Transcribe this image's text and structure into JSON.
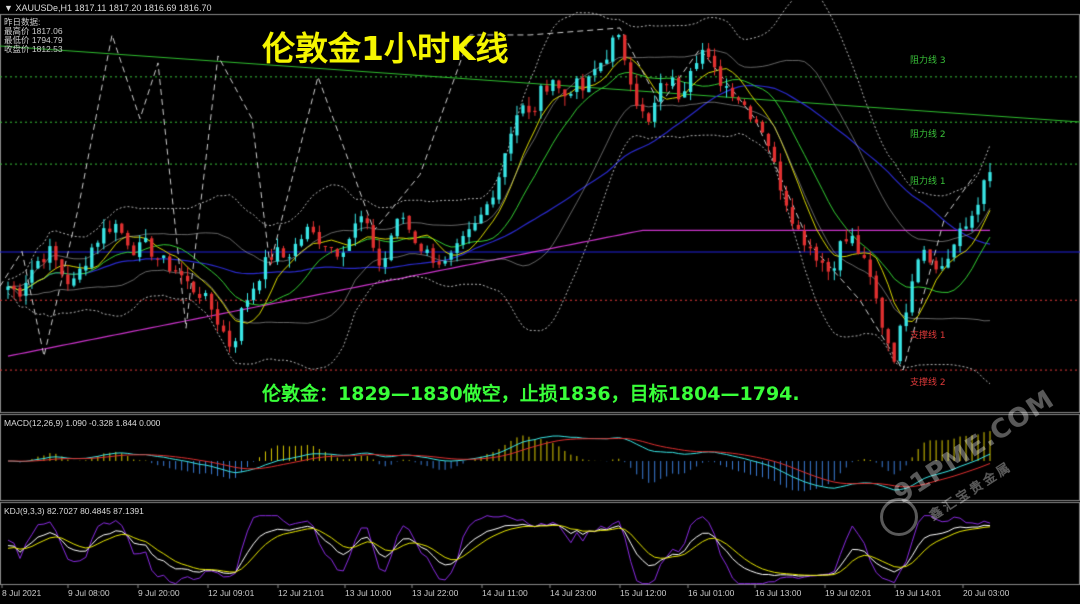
{
  "header": {
    "symbol": "XAUUSDe,H1",
    "ohlc": "1817.11 1817.20 1816.69 1816.70"
  },
  "info": {
    "heading": "昨日数据:",
    "open": "最高价 1817.06",
    "low": "最低价 1794.79",
    "close": "收盘价 1812.53"
  },
  "title": "伦敦金1小时K线",
  "trade_note": "伦敦金：1829—1830做空，止损1836，目标1804—1794.",
  "levels": [
    {
      "label": "阻力线 3",
      "price": 1836,
      "color": "#39c139"
    },
    {
      "label": "阻力线 2",
      "price": 1829.5,
      "color": "#39c139"
    },
    {
      "label": "阻力线 1",
      "price": 1823.5,
      "color": "#39c139"
    },
    {
      "label": "支撑线 1",
      "price": 1804,
      "color": "#e03a3a"
    },
    {
      "label": "支撑线 2",
      "price": 1794,
      "color": "#e03a3a"
    }
  ],
  "macd_label": "MACD(12,26,9) 1.090 -0.328 1.844 0.000",
  "kdj_label": "KDJ(9,3,3) 82.7027 80.4845 87.1391",
  "watermark": {
    "brand": "91PME.COM",
    "sub": "鑫汇宝贵金属"
  },
  "colors": {
    "bull": "#39e6e6",
    "bear": "#e03030",
    "ma_blue": "#2a2acc",
    "ma_magenta": "#cc33cc",
    "ma_green": "#33cc33",
    "ma_yellow": "#d8d800",
    "bollinger": "#dddddd"
  },
  "chart_data": {
    "type": "candlestick",
    "symbol": "XAUUSDe",
    "timeframe": "H1",
    "x_ticks": [
      "8 Jul 2021",
      "9 Jul 08:00",
      "9 Jul 20:00",
      "12 Jul 09:01",
      "12 Jul 21:01",
      "13 Jul 10:00",
      "13 Jul 22:00",
      "14 Jul 11:00",
      "14 Jul 23:00",
      "15 Jul 12:00",
      "16 Jul 01:00",
      "16 Jul 13:00",
      "19 Jul 02:01",
      "19 Jul 14:01",
      "20 Jul 03:00"
    ],
    "y_range": [
      1788,
      1845
    ],
    "close_path": [
      1806,
      1805,
      1808,
      1810,
      1811,
      1808,
      1806,
      1809,
      1812,
      1814,
      1815,
      1813,
      1811,
      1812,
      1810,
      1809,
      1808,
      1806,
      1805,
      1803,
      1800,
      1797,
      1803,
      1806,
      1809,
      1811,
      1810,
      1812,
      1814,
      1813,
      1812,
      1811,
      1813,
      1816,
      1813,
      1808,
      1814,
      1816,
      1813,
      1811,
      1810,
      1809,
      1811,
      1813,
      1815,
      1818,
      1822,
      1828,
      1832,
      1830,
      1834,
      1836,
      1833,
      1835,
      1834,
      1837,
      1839,
      1842,
      1838,
      1832,
      1829,
      1834,
      1836,
      1833,
      1838,
      1840,
      1837,
      1835,
      1834,
      1832,
      1830,
      1828,
      1822,
      1818,
      1814,
      1812,
      1810,
      1808,
      1812,
      1813,
      1810,
      1806,
      1800,
      1796,
      1802,
      1810,
      1812,
      1808,
      1810,
      1813,
      1815,
      1819,
      1822
    ],
    "macd": {
      "values": [
        1.09,
        -0.328,
        1.844,
        0.0
      ]
    },
    "kdj": {
      "values": [
        82.7027,
        80.4845,
        87.1391
      ]
    }
  }
}
